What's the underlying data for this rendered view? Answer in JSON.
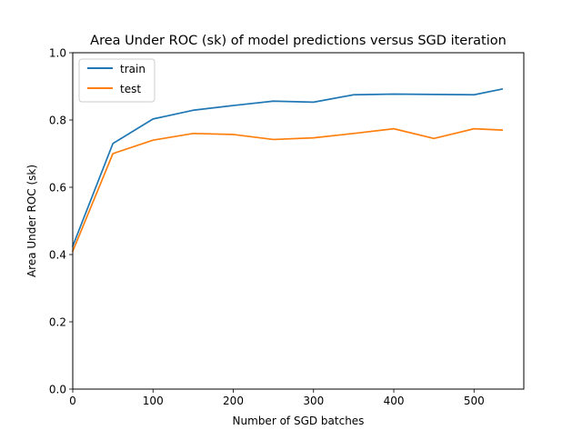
{
  "chart_data": {
    "type": "line",
    "title": "Area Under ROC (sk) of model predictions versus SGD iteration",
    "xlabel": "Number of SGD batches",
    "ylabel": "Area Under ROC (sk)",
    "xlim": [
      0,
      562
    ],
    "ylim": [
      0.0,
      1.0
    ],
    "xticks": [
      0,
      100,
      200,
      300,
      400,
      500
    ],
    "yticks": [
      0.0,
      0.2,
      0.4,
      0.6,
      0.8,
      1.0
    ],
    "xtick_labels": [
      "0",
      "100",
      "200",
      "300",
      "400",
      "500"
    ],
    "ytick_labels": [
      "0.0",
      "0.2",
      "0.4",
      "0.6",
      "0.8",
      "1.0"
    ],
    "grid": false,
    "legend_position": "top-left",
    "series": [
      {
        "name": "train",
        "color": "#1f77b4",
        "x": [
          0,
          50,
          100,
          150,
          200,
          250,
          300,
          350,
          400,
          450,
          500,
          535
        ],
        "y": [
          0.425,
          0.73,
          0.803,
          0.829,
          0.843,
          0.856,
          0.853,
          0.875,
          0.877,
          0.876,
          0.875,
          0.892
        ]
      },
      {
        "name": "test",
        "color": "#ff7f0e",
        "x": [
          0,
          50,
          100,
          150,
          200,
          250,
          300,
          350,
          400,
          450,
          500,
          535
        ],
        "y": [
          0.41,
          0.7,
          0.74,
          0.76,
          0.757,
          0.742,
          0.747,
          0.76,
          0.774,
          0.745,
          0.774,
          0.77
        ]
      }
    ]
  }
}
